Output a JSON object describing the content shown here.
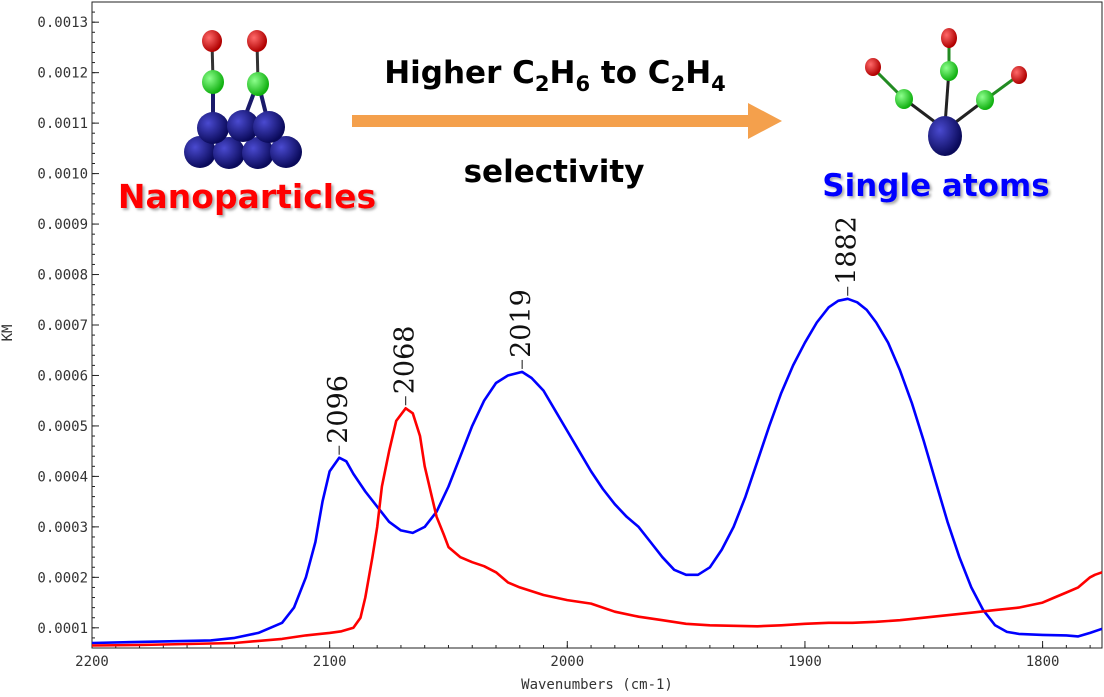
{
  "chart_data": {
    "type": "line",
    "xlabel": "Wavenumbers (cm-1)",
    "ylabel": "KM",
    "xlim": [
      2200,
      1775
    ],
    "ylim": [
      6e-05,
      0.00134
    ],
    "x_ticks": [
      2200,
      2100,
      2000,
      1900,
      1800
    ],
    "y_ticks": [
      0.0001,
      0.0002,
      0.0003,
      0.0004,
      0.0005,
      0.0006,
      0.0007,
      0.0008,
      0.0009,
      0.001,
      0.0011,
      0.0012,
      0.0013
    ],
    "y_tick_labels": [
      "0.0001",
      "0.0002",
      "0.0003",
      "0.0004",
      "0.0005",
      "0.0006",
      "0.0007",
      "0.0008",
      "0.0009",
      "0.0010",
      "0.0011",
      "0.0012",
      "0.0013"
    ],
    "grid": false,
    "series": [
      {
        "color": "#0000ff",
        "points": [
          [
            2200,
            7e-05
          ],
          [
            2180,
            7.2e-05
          ],
          [
            2160,
            7.4e-05
          ],
          [
            2150,
            7.5e-05
          ],
          [
            2140,
            8e-05
          ],
          [
            2130,
            9e-05
          ],
          [
            2120,
            0.00011
          ],
          [
            2115,
            0.00014
          ],
          [
            2110,
            0.0002
          ],
          [
            2106,
            0.00027
          ],
          [
            2103,
            0.00035
          ],
          [
            2100,
            0.00041
          ],
          [
            2096,
            0.000437
          ],
          [
            2093,
            0.00043
          ],
          [
            2090,
            0.000405
          ],
          [
            2085,
            0.00037
          ],
          [
            2080,
            0.00034
          ],
          [
            2075,
            0.00031
          ],
          [
            2070,
            0.000293
          ],
          [
            2065,
            0.000288
          ],
          [
            2060,
            0.0003
          ],
          [
            2055,
            0.00033
          ],
          [
            2050,
            0.00038
          ],
          [
            2045,
            0.00044
          ],
          [
            2040,
            0.0005
          ],
          [
            2035,
            0.00055
          ],
          [
            2030,
            0.000585
          ],
          [
            2025,
            0.0006
          ],
          [
            2019,
            0.000607
          ],
          [
            2015,
            0.000595
          ],
          [
            2010,
            0.00057
          ],
          [
            2005,
            0.00053
          ],
          [
            2000,
            0.00049
          ],
          [
            1995,
            0.00045
          ],
          [
            1990,
            0.00041
          ],
          [
            1985,
            0.000375
          ],
          [
            1980,
            0.000345
          ],
          [
            1975,
            0.00032
          ],
          [
            1970,
            0.0003
          ],
          [
            1965,
            0.00027
          ],
          [
            1960,
            0.00024
          ],
          [
            1955,
            0.000215
          ],
          [
            1950,
            0.000205
          ],
          [
            1945,
            0.000205
          ],
          [
            1940,
            0.00022
          ],
          [
            1935,
            0.000255
          ],
          [
            1930,
            0.0003
          ],
          [
            1925,
            0.00036
          ],
          [
            1920,
            0.00043
          ],
          [
            1915,
            0.0005
          ],
          [
            1910,
            0.000565
          ],
          [
            1905,
            0.00062
          ],
          [
            1900,
            0.000665
          ],
          [
            1895,
            0.000705
          ],
          [
            1890,
            0.000735
          ],
          [
            1886,
            0.000748
          ],
          [
            1882,
            0.000752
          ],
          [
            1878,
            0.000745
          ],
          [
            1874,
            0.00073
          ],
          [
            1870,
            0.000705
          ],
          [
            1865,
            0.000665
          ],
          [
            1860,
            0.00061
          ],
          [
            1855,
            0.000545
          ],
          [
            1850,
            0.00047
          ],
          [
            1845,
            0.00039
          ],
          [
            1840,
            0.00031
          ],
          [
            1835,
            0.00024
          ],
          [
            1830,
            0.00018
          ],
          [
            1825,
            0.000135
          ],
          [
            1820,
            0.000105
          ],
          [
            1815,
            9.2e-05
          ],
          [
            1810,
            8.8e-05
          ],
          [
            1800,
            8.6e-05
          ],
          [
            1790,
            8.5e-05
          ],
          [
            1785,
            8.3e-05
          ],
          [
            1780,
            9e-05
          ],
          [
            1775,
            9.8e-05
          ]
        ]
      },
      {
        "color": "#ff0000",
        "points": [
          [
            2200,
            6.5e-05
          ],
          [
            2180,
            6.6e-05
          ],
          [
            2160,
            6.8e-05
          ],
          [
            2140,
            7e-05
          ],
          [
            2120,
            7.8e-05
          ],
          [
            2110,
            8.5e-05
          ],
          [
            2100,
            9e-05
          ],
          [
            2095,
            9.3e-05
          ],
          [
            2090,
            0.0001
          ],
          [
            2087,
            0.00012
          ],
          [
            2085,
            0.00016
          ],
          [
            2082,
            0.00024
          ],
          [
            2080,
            0.0003
          ],
          [
            2078,
            0.00038
          ],
          [
            2075,
            0.00045
          ],
          [
            2072,
            0.00051
          ],
          [
            2068,
            0.000535
          ],
          [
            2065,
            0.000525
          ],
          [
            2062,
            0.00048
          ],
          [
            2060,
            0.00042
          ],
          [
            2057,
            0.00036
          ],
          [
            2055,
            0.00032
          ],
          [
            2052,
            0.000285
          ],
          [
            2050,
            0.00026
          ],
          [
            2045,
            0.00024
          ],
          [
            2040,
            0.00023
          ],
          [
            2035,
            0.000222
          ],
          [
            2030,
            0.00021
          ],
          [
            2025,
            0.00019
          ],
          [
            2020,
            0.00018
          ],
          [
            2010,
            0.000165
          ],
          [
            2000,
            0.000155
          ],
          [
            1990,
            0.000148
          ],
          [
            1980,
            0.000132
          ],
          [
            1970,
            0.000122
          ],
          [
            1960,
            0.000115
          ],
          [
            1950,
            0.000108
          ],
          [
            1940,
            0.000105
          ],
          [
            1930,
            0.000104
          ],
          [
            1920,
            0.000103
          ],
          [
            1910,
            0.000105
          ],
          [
            1900,
            0.000108
          ],
          [
            1890,
            0.00011
          ],
          [
            1880,
            0.00011
          ],
          [
            1870,
            0.000112
          ],
          [
            1860,
            0.000115
          ],
          [
            1850,
            0.00012
          ],
          [
            1840,
            0.000125
          ],
          [
            1830,
            0.00013
          ],
          [
            1820,
            0.000135
          ],
          [
            1810,
            0.00014
          ],
          [
            1800,
            0.00015
          ],
          [
            1795,
            0.00016
          ],
          [
            1790,
            0.00017
          ],
          [
            1785,
            0.00018
          ],
          [
            1780,
            0.0002
          ],
          [
            1778,
            0.000205
          ],
          [
            1775,
            0.00021
          ]
        ]
      }
    ],
    "annotations": [
      {
        "text": "2096",
        "x": 2096,
        "y": 0.000437
      },
      {
        "text": "2068",
        "x": 2068,
        "y": 0.000535
      },
      {
        "text": "2019",
        "x": 2019,
        "y": 0.000607
      },
      {
        "text": "1882",
        "x": 1882,
        "y": 0.000752
      }
    ]
  },
  "banner": {
    "headline_main": "Higher C",
    "headline_sub1": "2",
    "headline_mid": "H",
    "headline_sub2": "6",
    "headline_to": " to C",
    "headline_sub3": "2",
    "headline_end": "H",
    "headline_sub4": "4",
    "subline": "selectivity",
    "left_label": "Nanoparticles",
    "right_label": "Single atoms",
    "arrow_color": "#f4a04c",
    "left_label_color": "#ff0000",
    "right_label_color": "#0000ff"
  },
  "icons": {
    "left": "nanoparticle-co-adsorption-icon",
    "right": "single-atom-tricarbonyl-icon"
  }
}
